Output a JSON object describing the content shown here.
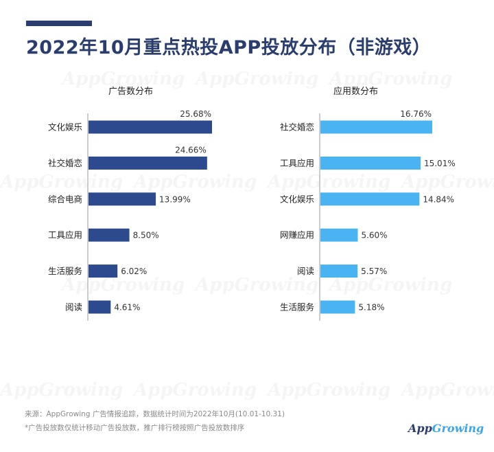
{
  "header": {
    "title": "2022年10月重点热投APP投放分布（非游戏）"
  },
  "watermark_text": "AppGrowing",
  "chart_data": [
    {
      "type": "bar",
      "orientation": "horizontal",
      "title": "广告数分布",
      "color": "#2e4a8e",
      "categories": [
        "文化娱乐",
        "社交婚恋",
        "综合电商",
        "工具应用",
        "生活服务",
        "阅读"
      ],
      "values": [
        25.68,
        24.66,
        13.99,
        8.5,
        6.02,
        4.61
      ],
      "labels": [
        "25.68%",
        "24.66%",
        "13.99%",
        "8.50%",
        "6.02%",
        "4.61%"
      ],
      "xlim": [
        0,
        30
      ],
      "unit": "%",
      "grid": false
    },
    {
      "type": "bar",
      "orientation": "horizontal",
      "title": "应用数分布",
      "color": "#4ab4f3",
      "categories": [
        "社交婚恋",
        "工具应用",
        "文化娱乐",
        "网赚应用",
        "阅读",
        "生活服务"
      ],
      "values": [
        16.76,
        15.01,
        14.84,
        5.6,
        5.57,
        5.18
      ],
      "labels": [
        "16.76%",
        "15.01%",
        "14.84%",
        "5.60%",
        "5.57%",
        "5.18%"
      ],
      "xlim": [
        0,
        20
      ],
      "unit": "%",
      "grid": false
    }
  ],
  "footer": {
    "source": "来源：AppGrowing 广告情报追踪，数据统计时间为2022年10月(10.01-10.31)",
    "note": "*广告投放数仅统计移动广告投放数，推广排行榜按照广告投放数排序"
  },
  "brand": {
    "part1": "App",
    "part2": "Growing"
  }
}
